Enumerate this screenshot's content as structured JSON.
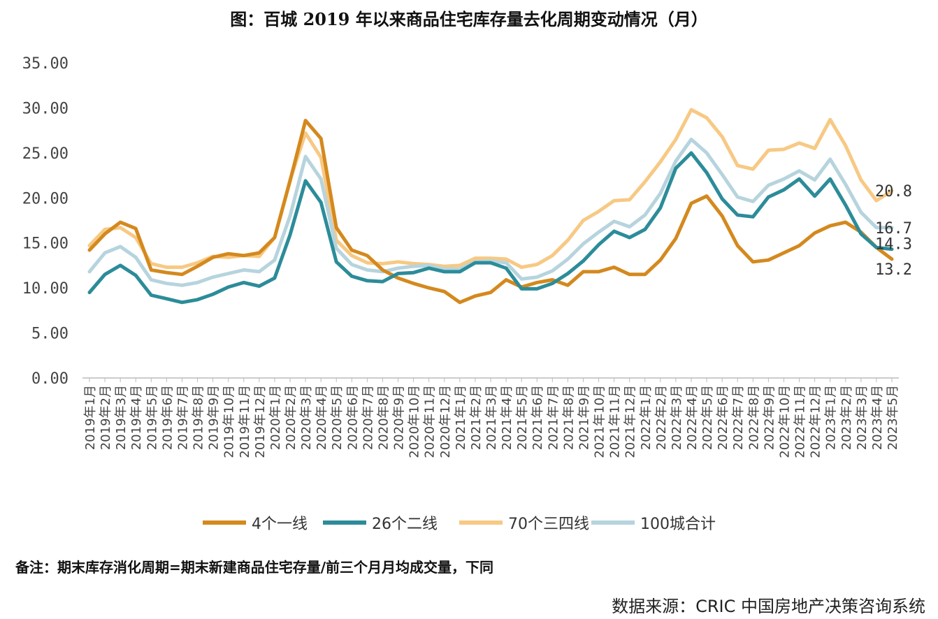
{
  "title": "图：百城 2019 年以来商品住宅库存量去化周期变动情况（月）",
  "note": "备注：期末库存消化周期=期末新建商品住宅存量/前三个月月均成交量，下同",
  "source": "数据来源：CRIC 中国房地产决策咨询系统",
  "chart_data": {
    "type": "line",
    "ylim": [
      0,
      35
    ],
    "yticks": [
      "0.00",
      "5.00",
      "10.00",
      "15.00",
      "20.00",
      "25.00",
      "30.00",
      "35.00"
    ],
    "grid": false,
    "legend_position": "bottom",
    "categories": [
      "2019年1月",
      "2019年2月",
      "2019年3月",
      "2019年4月",
      "2019年5月",
      "2019年6月",
      "2019年7月",
      "2019年8月",
      "2019年9月",
      "2019年10月",
      "2019年11月",
      "2019年12月",
      "2020年1月",
      "2020年2月",
      "2020年3月",
      "2020年4月",
      "2020年5月",
      "2020年6月",
      "2020年7月",
      "2020年8月",
      "2020年9月",
      "2020年10月",
      "2020年11月",
      "2020年12月",
      "2021年1月",
      "2021年2月",
      "2021年3月",
      "2021年4月",
      "2021年5月",
      "2021年6月",
      "2021年7月",
      "2021年8月",
      "2021年9月",
      "2021年10月",
      "2021年11月",
      "2021年12月",
      "2022年1月",
      "2022年2月",
      "2022年3月",
      "2022年4月",
      "2022年5月",
      "2022年6月",
      "2022年7月",
      "2022年8月",
      "2022年9月",
      "2022年10月",
      "2022年11月",
      "2022年12月",
      "2023年1月",
      "2023年2月",
      "2023年3月",
      "2023年4月",
      "2023年5月"
    ],
    "series": [
      {
        "name": "4个一线",
        "color": "#d4891e",
        "values": [
          14.2,
          16.0,
          17.3,
          16.6,
          12.0,
          11.7,
          11.5,
          12.4,
          13.4,
          13.8,
          13.6,
          13.9,
          15.6,
          21.9,
          28.6,
          26.6,
          16.7,
          14.2,
          13.6,
          12.0,
          11.1,
          10.5,
          10.0,
          9.6,
          8.4,
          9.1,
          9.5,
          10.9,
          10.1,
          10.6,
          10.9,
          10.3,
          11.8,
          11.8,
          12.3,
          11.5,
          11.5,
          13.1,
          15.5,
          19.4,
          20.2,
          18.0,
          14.7,
          12.9,
          13.1,
          13.9,
          14.7,
          16.1,
          16.9,
          17.3,
          16.2,
          14.5,
          13.2
        ],
        "end_label": "13.2"
      },
      {
        "name": "26个二线",
        "color": "#2c8c99",
        "values": [
          9.5,
          11.5,
          12.5,
          11.4,
          9.2,
          8.8,
          8.4,
          8.7,
          9.3,
          10.1,
          10.6,
          10.2,
          11.1,
          15.9,
          21.9,
          19.5,
          12.9,
          11.3,
          10.8,
          10.7,
          11.6,
          11.7,
          12.2,
          11.8,
          11.8,
          12.8,
          12.8,
          12.2,
          9.9,
          9.9,
          10.5,
          11.6,
          13.0,
          14.8,
          16.3,
          15.6,
          16.5,
          18.9,
          23.3,
          25.0,
          22.8,
          19.9,
          18.1,
          17.9,
          20.1,
          20.9,
          22.1,
          20.2,
          22.1,
          19.2,
          16.0,
          14.5,
          14.3
        ],
        "end_label": "14.3"
      },
      {
        "name": "70个三四线",
        "color": "#f7c984",
        "values": [
          14.7,
          16.5,
          16.7,
          15.6,
          12.7,
          12.3,
          12.3,
          12.8,
          13.5,
          13.4,
          13.6,
          13.5,
          15.6,
          22.0,
          27.2,
          24.5,
          15.3,
          13.6,
          12.8,
          12.7,
          12.9,
          12.7,
          12.6,
          12.4,
          12.5,
          13.3,
          13.3,
          13.2,
          12.3,
          12.6,
          13.6,
          15.3,
          17.5,
          18.5,
          19.7,
          19.8,
          21.8,
          24.0,
          26.5,
          29.8,
          28.9,
          26.8,
          23.6,
          23.2,
          25.3,
          25.4,
          26.1,
          25.5,
          28.7,
          25.8,
          22.0,
          19.7,
          20.8
        ],
        "end_label": "20.8"
      },
      {
        "name": "100城合计",
        "color": "#b6d4de",
        "values": [
          11.8,
          13.9,
          14.6,
          13.4,
          10.9,
          10.5,
          10.3,
          10.6,
          11.2,
          11.6,
          12.0,
          11.8,
          13.1,
          18.0,
          24.6,
          22.1,
          14.4,
          12.6,
          12.0,
          11.8,
          12.2,
          12.4,
          12.5,
          12.1,
          12.1,
          12.9,
          13.0,
          12.8,
          11.0,
          11.2,
          11.9,
          13.2,
          14.9,
          16.2,
          17.4,
          16.8,
          18.1,
          20.5,
          24.1,
          26.5,
          25.0,
          22.6,
          20.1,
          19.6,
          21.4,
          22.1,
          23.0,
          22.0,
          24.3,
          21.5,
          18.4,
          16.7,
          16.7
        ],
        "end_label": "16.7"
      }
    ]
  }
}
